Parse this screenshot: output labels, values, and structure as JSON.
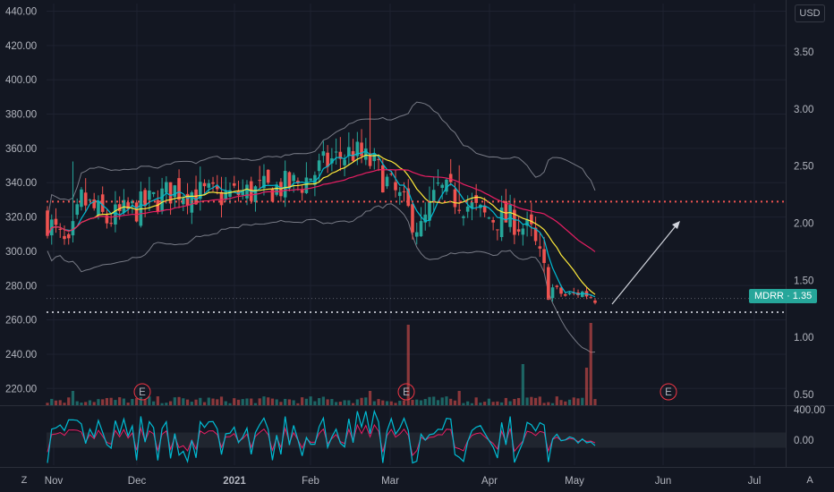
{
  "toolbar": {
    "currency_label": "USD",
    "zoom_label": "Z",
    "auto_label": "A"
  },
  "price_badge": {
    "symbol": "MDRR",
    "separator": "·",
    "value": "1.35",
    "color": "#26a69a"
  },
  "colors": {
    "background": "#131722",
    "grid": "#1e2230",
    "up": "#26a69a",
    "down": "#ef5350",
    "ma_fast": "#00bcd4",
    "ma_mid": "#ffeb3b",
    "ma_slow": "#e91e63",
    "bands": "#787b86",
    "earnings": "#f23645"
  },
  "chart_data": {
    "type": "candlestick",
    "left_axis": {
      "ticks": [
        "440.00",
        "420.00",
        "400.00",
        "380.00",
        "360.00",
        "340.00",
        "320.00",
        "300.00",
        "280.00",
        "260.00",
        "240.00",
        "220.00"
      ],
      "values": [
        440,
        420,
        400,
        380,
        360,
        340,
        320,
        300,
        280,
        260,
        240,
        220
      ]
    },
    "right_axis": {
      "ticks": [
        "3.50",
        "3.00",
        "2.50",
        "2.00",
        "1.50",
        "1.00",
        "0.50"
      ],
      "values": [
        3.5,
        3.0,
        2.5,
        2.0,
        1.5,
        1.0,
        0.5
      ]
    },
    "oscillator_axis": {
      "ticks": [
        "400.00",
        "0.00"
      ],
      "values": [
        400,
        0
      ]
    },
    "x_axis": {
      "labels": [
        "Nov",
        "Dec",
        "2021",
        "Feb",
        "Mar",
        "Apr",
        "May",
        "Jun",
        "Jul"
      ],
      "bold": [
        "2021"
      ]
    },
    "reference_lines": [
      {
        "style": "dotted",
        "color": "#ef5350",
        "value": 329
      },
      {
        "style": "dotted",
        "color": "#b2b5be",
        "value": 264.5
      },
      {
        "style": "dotted-thin",
        "color": "#5d606b",
        "value": 272.5
      }
    ],
    "current_price": 1.35,
    "earnings_markers": [
      "E",
      "E",
      "E"
    ],
    "annotation": "arrow-up-right",
    "price_range_left": [
      212,
      447
    ],
    "price_range_right": [
      0.42,
      3.62
    ],
    "volume": "bars at bottom of price pane",
    "oscillator": "cci-style line in lower pane"
  }
}
